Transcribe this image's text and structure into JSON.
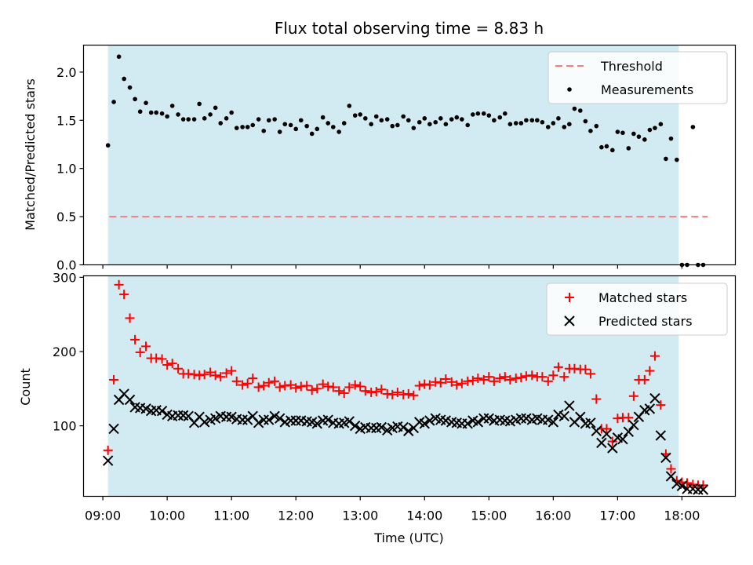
{
  "chart_data": [
    {
      "type": "scatter",
      "title": "Flux total observing time = 8.83 h",
      "xlabel": "",
      "ylabel": "Matched/Predicted stars",
      "ylim": [
        0,
        2.28
      ],
      "yticks": [
        "0.0",
        "0.5",
        "1.0",
        "1.5",
        "2.0"
      ],
      "ytick_values": [
        0,
        0.5,
        1.0,
        1.5,
        2.0
      ],
      "shaded_span_hours": [
        9.08,
        17.95
      ],
      "threshold": 0.5,
      "threshold_x_range": [
        9.1,
        18.4
      ],
      "legend": {
        "placement": "top-right",
        "threshold_label": "Threshold",
        "measurements_label": "Measurements"
      },
      "series": [
        {
          "name": "Measurements",
          "x": [
            9.08,
            9.17,
            9.25,
            9.33,
            9.42,
            9.5,
            9.58,
            9.67,
            9.75,
            9.83,
            9.92,
            10.0,
            10.08,
            10.17,
            10.25,
            10.33,
            10.42,
            10.5,
            10.58,
            10.67,
            10.75,
            10.83,
            10.92,
            11.0,
            11.08,
            11.17,
            11.25,
            11.33,
            11.42,
            11.5,
            11.58,
            11.67,
            11.75,
            11.83,
            11.92,
            12.0,
            12.08,
            12.17,
            12.25,
            12.33,
            12.42,
            12.5,
            12.58,
            12.67,
            12.75,
            12.83,
            12.92,
            13.0,
            13.08,
            13.17,
            13.25,
            13.33,
            13.42,
            13.5,
            13.58,
            13.67,
            13.75,
            13.83,
            13.92,
            14.0,
            14.08,
            14.17,
            14.25,
            14.33,
            14.42,
            14.5,
            14.58,
            14.67,
            14.75,
            14.83,
            14.92,
            15.0,
            15.08,
            15.17,
            15.25,
            15.33,
            15.42,
            15.5,
            15.58,
            15.67,
            15.75,
            15.83,
            15.92,
            16.0,
            16.08,
            16.17,
            16.25,
            16.33,
            16.42,
            16.5,
            16.58,
            16.67,
            16.75,
            16.83,
            16.92,
            17.0,
            17.08,
            17.17,
            17.25,
            17.33,
            17.42,
            17.5,
            17.58,
            17.67,
            17.75,
            17.83,
            17.92,
            18.0,
            18.08,
            18.17,
            18.25,
            18.33
          ],
          "y": [
            1.24,
            1.69,
            2.16,
            1.93,
            1.84,
            1.72,
            1.59,
            1.68,
            1.58,
            1.58,
            1.57,
            1.54,
            1.65,
            1.56,
            1.51,
            1.51,
            1.51,
            1.67,
            1.52,
            1.56,
            1.63,
            1.47,
            1.52,
            1.58,
            1.42,
            1.43,
            1.43,
            1.45,
            1.51,
            1.39,
            1.5,
            1.51,
            1.38,
            1.46,
            1.45,
            1.41,
            1.5,
            1.44,
            1.36,
            1.41,
            1.53,
            1.47,
            1.43,
            1.38,
            1.47,
            1.65,
            1.55,
            1.56,
            1.52,
            1.46,
            1.54,
            1.5,
            1.51,
            1.44,
            1.45,
            1.54,
            1.5,
            1.42,
            1.48,
            1.52,
            1.46,
            1.48,
            1.52,
            1.46,
            1.51,
            1.53,
            1.51,
            1.45,
            1.56,
            1.57,
            1.57,
            1.55,
            1.5,
            1.53,
            1.57,
            1.46,
            1.47,
            1.47,
            1.5,
            1.5,
            1.5,
            1.48,
            1.43,
            1.47,
            1.52,
            1.43,
            1.46,
            1.62,
            1.6,
            1.49,
            1.39,
            1.44,
            1.22,
            1.23,
            1.19,
            1.38,
            1.37,
            1.21,
            1.36,
            1.33,
            1.3,
            1.4,
            1.42,
            1.46,
            1.1,
            1.31,
            1.09,
            0.0,
            0.0,
            1.43,
            0.0,
            0.0
          ]
        }
      ]
    },
    {
      "type": "scatter",
      "xlabel": "Time (UTC)",
      "ylabel": "Count",
      "ylim": [
        5,
        302
      ],
      "yticks": [
        "100",
        "200",
        "300"
      ],
      "ytick_values": [
        100,
        200,
        300
      ],
      "xlim_hours": [
        8.7,
        18.83
      ],
      "xticks": [
        "09:00",
        "10:00",
        "11:00",
        "12:00",
        "13:00",
        "14:00",
        "15:00",
        "16:00",
        "17:00",
        "18:00"
      ],
      "xtick_values": [
        9,
        10,
        11,
        12,
        13,
        14,
        15,
        16,
        17,
        18
      ],
      "shaded_span_hours": [
        9.08,
        17.95
      ],
      "legend": {
        "placement": "top-right",
        "matched_label": "Matched stars",
        "predicted_label": "Predicted stars"
      },
      "series": [
        {
          "name": "Matched stars",
          "x": [
            9.08,
            9.17,
            9.25,
            9.33,
            9.42,
            9.5,
            9.58,
            9.67,
            9.75,
            9.83,
            9.92,
            10.0,
            10.08,
            10.17,
            10.25,
            10.33,
            10.42,
            10.5,
            10.58,
            10.67,
            10.75,
            10.83,
            10.92,
            11.0,
            11.08,
            11.17,
            11.25,
            11.33,
            11.42,
            11.5,
            11.58,
            11.67,
            11.75,
            11.83,
            11.92,
            12.0,
            12.08,
            12.17,
            12.25,
            12.33,
            12.42,
            12.5,
            12.58,
            12.67,
            12.75,
            12.83,
            12.92,
            13.0,
            13.08,
            13.17,
            13.25,
            13.33,
            13.42,
            13.5,
            13.58,
            13.67,
            13.75,
            13.83,
            13.92,
            14.0,
            14.08,
            14.17,
            14.25,
            14.33,
            14.42,
            14.5,
            14.58,
            14.67,
            14.75,
            14.83,
            14.92,
            15.0,
            15.08,
            15.17,
            15.25,
            15.33,
            15.42,
            15.5,
            15.58,
            15.67,
            15.75,
            15.83,
            15.92,
            16.0,
            16.08,
            16.17,
            16.25,
            16.33,
            16.42,
            16.5,
            16.58,
            16.67,
            16.75,
            16.83,
            16.92,
            17.0,
            17.08,
            17.17,
            17.25,
            17.33,
            17.42,
            17.5,
            17.58,
            17.67,
            17.75,
            17.83,
            17.92,
            18.0,
            18.08,
            18.17,
            18.25,
            18.33
          ],
          "y": [
            67,
            162,
            290,
            277,
            245,
            216,
            199,
            207,
            191,
            191,
            190,
            182,
            184,
            177,
            170,
            170,
            169,
            168,
            169,
            172,
            168,
            166,
            171,
            174,
            160,
            155,
            157,
            164,
            152,
            154,
            158,
            160,
            152,
            154,
            155,
            151,
            153,
            154,
            148,
            150,
            156,
            153,
            152,
            147,
            144,
            152,
            155,
            153,
            147,
            145,
            146,
            149,
            143,
            142,
            145,
            142,
            143,
            141,
            154,
            156,
            155,
            159,
            158,
            163,
            159,
            155,
            157,
            160,
            161,
            164,
            162,
            166,
            160,
            164,
            166,
            162,
            164,
            165,
            167,
            168,
            166,
            166,
            160,
            168,
            179,
            166,
            177,
            177,
            176,
            176,
            170,
            136,
            96,
            96,
            79,
            110,
            111,
            111,
            140,
            162,
            162,
            174,
            194,
            128,
            62,
            42,
            26,
            24,
            23,
            21,
            20,
            20
          ]
        },
        {
          "name": "Predicted stars",
          "x": [
            9.08,
            9.17,
            9.25,
            9.33,
            9.42,
            9.5,
            9.58,
            9.67,
            9.75,
            9.83,
            9.92,
            10.0,
            10.08,
            10.17,
            10.25,
            10.33,
            10.42,
            10.5,
            10.58,
            10.67,
            10.75,
            10.83,
            10.92,
            11.0,
            11.08,
            11.17,
            11.25,
            11.33,
            11.42,
            11.5,
            11.58,
            11.67,
            11.75,
            11.83,
            11.92,
            12.0,
            12.08,
            12.17,
            12.25,
            12.33,
            12.42,
            12.5,
            12.58,
            12.67,
            12.75,
            12.83,
            12.92,
            13.0,
            13.08,
            13.17,
            13.25,
            13.33,
            13.42,
            13.5,
            13.58,
            13.67,
            13.75,
            13.83,
            13.92,
            14.0,
            14.08,
            14.17,
            14.25,
            14.33,
            14.42,
            14.5,
            14.58,
            14.67,
            14.75,
            14.83,
            14.92,
            15.0,
            15.08,
            15.17,
            15.25,
            15.33,
            15.42,
            15.5,
            15.58,
            15.67,
            15.75,
            15.83,
            15.92,
            16.0,
            16.08,
            16.17,
            16.25,
            16.33,
            16.42,
            16.5,
            16.58,
            16.67,
            16.75,
            16.83,
            16.92,
            17.0,
            17.08,
            17.17,
            17.25,
            17.33,
            17.42,
            17.5,
            17.58,
            17.67,
            17.75,
            17.83,
            17.92,
            18.0,
            18.08,
            18.17,
            18.25,
            18.33
          ],
          "y": [
            53,
            96,
            135,
            143,
            135,
            125,
            124,
            123,
            120,
            121,
            120,
            115,
            113,
            114,
            114,
            113,
            104,
            112,
            105,
            108,
            110,
            113,
            112,
            112,
            109,
            108,
            108,
            113,
            104,
            108,
            108,
            113,
            110,
            105,
            107,
            107,
            107,
            106,
            105,
            103,
            107,
            108,
            104,
            103,
            104,
            106,
            100,
            96,
            98,
            97,
            97,
            98,
            94,
            97,
            99,
            98,
            93,
            97,
            105,
            103,
            107,
            110,
            108,
            107,
            105,
            104,
            103,
            103,
            107,
            105,
            110,
            110,
            107,
            108,
            107,
            106,
            108,
            110,
            110,
            108,
            110,
            108,
            108,
            105,
            115,
            113,
            127,
            105,
            112,
            103,
            104,
            93,
            77,
            89,
            70,
            84,
            82,
            92,
            101,
            112,
            121,
            123,
            137,
            87,
            57,
            32,
            22,
            19,
            15,
            15,
            14,
            14
          ]
        }
      ]
    }
  ]
}
